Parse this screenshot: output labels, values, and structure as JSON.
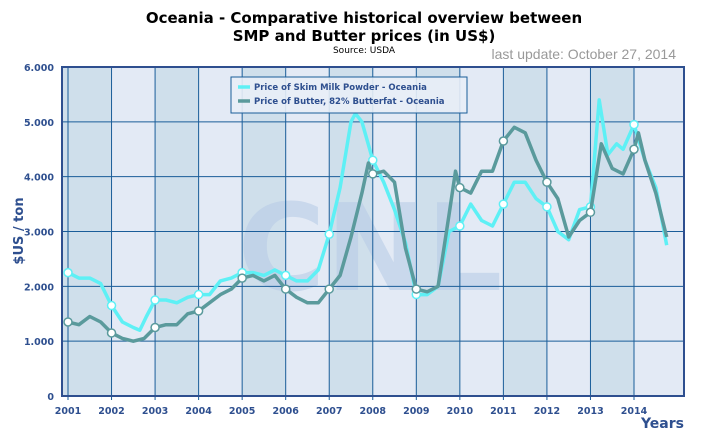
{
  "title_line1": "Oceania - Comparative historical overview between",
  "title_line2": "SMP and Butter prices (in US$)",
  "source": "Source: USDA",
  "last_update": "last update: October 27, 2014",
  "chart_data": {
    "type": "line",
    "title": "Oceania - Comparative historical overview between SMP and Butter prices (in US$)",
    "subtitle": "Source: USDA",
    "xlabel": "Years",
    "ylabel": "$US / ton",
    "xlim": [
      2000.95,
      2014.85
    ],
    "ylim": [
      0,
      6000
    ],
    "x_ticks": [
      "2001",
      "2002",
      "2003",
      "2004",
      "2005",
      "2006",
      "2007",
      "2008",
      "2009",
      "2010",
      "2011",
      "2012",
      "2013",
      "2014"
    ],
    "y_ticks": [
      "0",
      "1.000",
      "2.000",
      "3.000",
      "4.000",
      "5.000",
      "6.000"
    ],
    "grid": true,
    "legend_placement": "top-center",
    "colors": {
      "smp": "#5ef0f5",
      "butter": "#5a9a9c",
      "border": "#2e4f8f",
      "grid": "#1a5d99",
      "band_dark": "#cfdfeb",
      "band_light": "#e3eaf5"
    },
    "series": [
      {
        "name": "Price of Skim Milk Powder - Oceania",
        "x": [
          2001,
          2001.25,
          2001.5,
          2001.75,
          2002,
          2002.25,
          2002.5,
          2002.65,
          2002.8,
          2003,
          2003.25,
          2003.5,
          2003.75,
          2004,
          2004.25,
          2004.5,
          2004.75,
          2005,
          2005.25,
          2005.5,
          2005.75,
          2006,
          2006.25,
          2006.5,
          2006.75,
          2007,
          2007.25,
          2007.5,
          2007.6,
          2007.75,
          2008,
          2008.25,
          2008.5,
          2008.75,
          2009,
          2009.25,
          2009.5,
          2009.75,
          2010,
          2010.25,
          2010.5,
          2010.75,
          2011,
          2011.25,
          2011.5,
          2011.75,
          2012,
          2012.25,
          2012.5,
          2012.75,
          2013,
          2013.2,
          2013.4,
          2013.6,
          2013.75,
          2014,
          2014.25,
          2014.5,
          2014.75
        ],
        "y": [
          2250,
          2150,
          2150,
          2050,
          1650,
          1350,
          1250,
          1200,
          1450,
          1750,
          1750,
          1700,
          1800,
          1850,
          1850,
          2100,
          2150,
          2250,
          2250,
          2200,
          2300,
          2200,
          2100,
          2100,
          2300,
          2950,
          3800,
          5000,
          5150,
          5000,
          4300,
          3900,
          3400,
          2800,
          1850,
          1850,
          2000,
          3000,
          3100,
          3500,
          3200,
          3100,
          3500,
          3900,
          3900,
          3600,
          3450,
          3000,
          2850,
          3400,
          3450,
          5400,
          4400,
          4600,
          4500,
          4950,
          4300,
          3800,
          2750
        ]
      },
      {
        "name": "Price of Butter, 82% Butterfat - Oceania",
        "x": [
          2001,
          2001.25,
          2001.5,
          2001.75,
          2002,
          2002.25,
          2002.5,
          2002.75,
          2003,
          2003.25,
          2003.5,
          2003.75,
          2004,
          2004.25,
          2004.5,
          2004.75,
          2005,
          2005.25,
          2005.5,
          2005.75,
          2006,
          2006.25,
          2006.5,
          2006.75,
          2007,
          2007.25,
          2007.5,
          2007.75,
          2007.9,
          2008,
          2008.25,
          2008.5,
          2008.75,
          2009,
          2009.25,
          2009.5,
          2009.75,
          2009.9,
          2010,
          2010.25,
          2010.5,
          2010.75,
          2011,
          2011.25,
          2011.5,
          2011.75,
          2012,
          2012.25,
          2012.5,
          2012.75,
          2013,
          2013.25,
          2013.5,
          2013.75,
          2014,
          2014.1,
          2014.25,
          2014.5,
          2014.75
        ],
        "y": [
          1350,
          1300,
          1450,
          1350,
          1150,
          1050,
          1000,
          1050,
          1250,
          1300,
          1300,
          1500,
          1550,
          1700,
          1850,
          1950,
          2150,
          2200,
          2100,
          2200,
          1950,
          1800,
          1700,
          1700,
          1950,
          2200,
          2900,
          3700,
          4250,
          4050,
          4100,
          3900,
          2700,
          1950,
          1900,
          2000,
          3300,
          4100,
          3800,
          3700,
          4100,
          4100,
          4650,
          4900,
          4800,
          4300,
          3900,
          3600,
          2900,
          3200,
          3350,
          4600,
          4150,
          4050,
          4500,
          4800,
          4300,
          3700,
          2900
        ]
      }
    ]
  }
}
